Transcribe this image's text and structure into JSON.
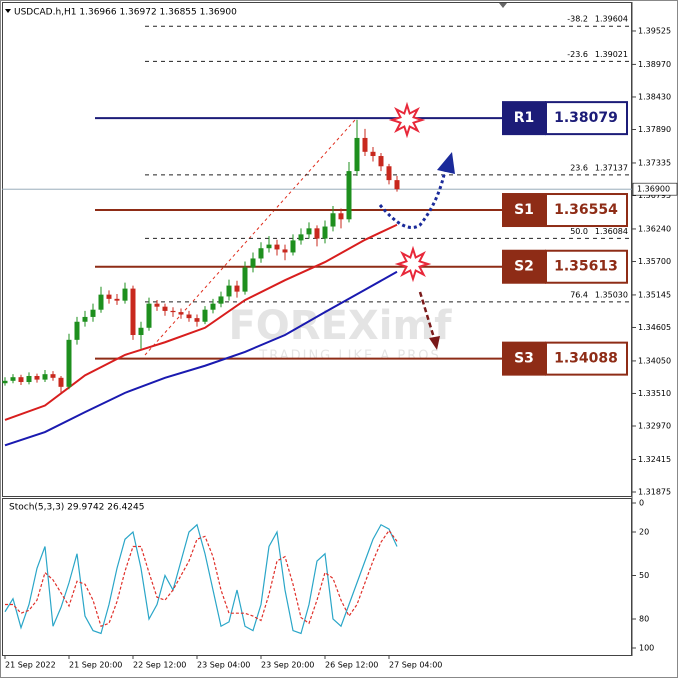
{
  "chart_data": [
    {
      "type": "candlestick",
      "title": "USDCAD.h,H1  1.36966 1.36972 1.36855 1.36900",
      "categories": [
        "21 Sep 2022",
        null,
        null,
        null,
        null,
        null,
        null,
        null,
        "21 Sep 20:00",
        null,
        null,
        null,
        null,
        null,
        null,
        null,
        "22 Sep 12:00",
        null,
        null,
        null,
        null,
        null,
        null,
        null,
        "23 Sep 04:00",
        null,
        null,
        null,
        null,
        null,
        null,
        null,
        "23 Sep 20:00",
        null,
        null,
        null,
        null,
        null,
        null,
        null,
        "26 Sep 12:00",
        null,
        null,
        null,
        null,
        null,
        null,
        null,
        "27 Sep 04:00",
        null
      ],
      "open": [
        1.3368,
        1.3372,
        1.3378,
        1.337,
        1.338,
        1.3374,
        1.3383,
        1.3377,
        1.3362,
        1.344,
        1.347,
        1.3478,
        1.349,
        1.3515,
        1.3508,
        1.3505,
        1.3525,
        1.3448,
        1.346,
        1.35,
        1.3495,
        1.3488,
        1.3486,
        1.3482,
        1.3476,
        1.347,
        1.349,
        1.35,
        1.3512,
        1.353,
        1.352,
        1.356,
        1.3575,
        1.3592,
        1.3598,
        1.359,
        1.3585,
        1.3605,
        1.3615,
        1.3625,
        1.3608,
        1.3628,
        1.365,
        1.364,
        1.372,
        1.3775,
        1.3752,
        1.3745,
        1.3728,
        1.3705
      ],
      "high": [
        1.3378,
        1.3383,
        1.3382,
        1.3386,
        1.3384,
        1.339,
        1.3388,
        1.338,
        1.345,
        1.3478,
        1.3488,
        1.35,
        1.3528,
        1.3522,
        1.3516,
        1.3535,
        1.353,
        1.347,
        1.351,
        1.3506,
        1.35,
        1.3494,
        1.3492,
        1.3488,
        1.3482,
        1.3496,
        1.3508,
        1.352,
        1.354,
        1.3538,
        1.357,
        1.3585,
        1.3602,
        1.3612,
        1.3606,
        1.3598,
        1.3615,
        1.3625,
        1.3635,
        1.363,
        1.3638,
        1.3662,
        1.3658,
        1.3735,
        1.3805,
        1.379,
        1.376,
        1.375,
        1.3732,
        1.3712
      ],
      "low": [
        1.3364,
        1.3368,
        1.3365,
        1.3366,
        1.3369,
        1.337,
        1.3372,
        1.3352,
        1.3358,
        1.3432,
        1.3462,
        1.347,
        1.3485,
        1.35,
        1.3498,
        1.35,
        1.344,
        1.3425,
        1.3455,
        1.3488,
        1.348,
        1.3478,
        1.3475,
        1.347,
        1.3462,
        1.3466,
        1.3484,
        1.3494,
        1.3505,
        1.351,
        1.3515,
        1.3552,
        1.3568,
        1.3585,
        1.358,
        1.3572,
        1.358,
        1.3598,
        1.3608,
        1.3595,
        1.36,
        1.362,
        1.3625,
        1.3635,
        1.3712,
        1.3745,
        1.3736,
        1.372,
        1.3698,
        1.3686
      ],
      "close": [
        1.3372,
        1.3378,
        1.337,
        1.338,
        1.3374,
        1.3383,
        1.3377,
        1.3362,
        1.344,
        1.347,
        1.3478,
        1.349,
        1.3515,
        1.3508,
        1.3505,
        1.3525,
        1.3448,
        1.346,
        1.35,
        1.3495,
        1.3488,
        1.3486,
        1.3482,
        1.3476,
        1.347,
        1.349,
        1.35,
        1.3512,
        1.353,
        1.352,
        1.356,
        1.3575,
        1.3592,
        1.3598,
        1.359,
        1.3585,
        1.3605,
        1.3615,
        1.3625,
        1.3608,
        1.3628,
        1.365,
        1.364,
        1.372,
        1.3775,
        1.3752,
        1.3745,
        1.3728,
        1.3705,
        1.369
      ],
      "up_color": "#1e8f1e",
      "down_color": "#c8281e",
      "lines": [
        {
          "color": "#d81e1e",
          "x": [
            0,
            5,
            10,
            15,
            20,
            25,
            30,
            35,
            40,
            45,
            49
          ],
          "values": [
            1.3307,
            1.3331,
            1.3381,
            1.3415,
            1.3436,
            1.346,
            1.3506,
            1.3539,
            1.3569,
            1.3606,
            1.3631
          ]
        },
        {
          "color": "#1a1ab0",
          "x": [
            0,
            5,
            10,
            15,
            20,
            25,
            30,
            35,
            40,
            45,
            49
          ],
          "values": [
            1.3265,
            1.3287,
            1.332,
            1.3352,
            1.3377,
            1.3397,
            1.342,
            1.3448,
            1.3486,
            1.3523,
            1.3553
          ]
        }
      ],
      "ylim": [
        1.39956,
        1.31792
      ],
      "yticks": [
        1.39525,
        {
          "value": 1.3897,
          "label": "1.38970"
        },
        {
          "value": 1.3843,
          "label": "1.38430"
        },
        {
          "value": 1.3789,
          "label": "1.37890"
        },
        1.37335,
        1.36795,
        {
          "value": 1.3624,
          "label": "1.36240"
        },
        {
          "value": 1.357,
          "label": "1.35700"
        },
        1.35145,
        1.34605,
        {
          "value": 1.3405,
          "label": "1.34050"
        },
        {
          "value": 1.3351,
          "label": "1.33510"
        },
        {
          "value": 1.3297,
          "label": "1.32970"
        },
        1.32415,
        1.31875
      ],
      "current_price": {
        "value": 1.369,
        "label": "1.36900"
      },
      "fib_levels": [
        {
          "level": "-38.2",
          "value": 1.39604
        },
        {
          "level": "-23.6",
          "value": 1.39021
        },
        {
          "level": "23.6",
          "value": 1.37137
        },
        {
          "level": "50.0",
          "value": 1.36084
        },
        {
          "level": "76.4",
          "value": {
            "value": 1.3503,
            "label": "1.35030"
          }
        }
      ],
      "levels": [
        {
          "name": "R1",
          "value": 1.38079,
          "color": "#1c1c78"
        },
        {
          "name": "S1",
          "value": 1.36554,
          "color": "#8e2c16"
        },
        {
          "name": "S2",
          "value": 1.35613,
          "color": "#8e2c16"
        },
        {
          "name": "S3",
          "value": 1.34088,
          "color": "#8e2c16"
        }
      ]
    },
    {
      "type": "line",
      "title": "Stoch(5,3,3) 29.9742 26.4245",
      "lines": [
        {
          "color": "#2aa6c8",
          "values": [
            75,
            66,
            86,
            70,
            45,
            30,
            85,
            72,
            55,
            35,
            78,
            88,
            90,
            70,
            45,
            25,
            20,
            45,
            80,
            70,
            50,
            60,
            40,
            20,
            15,
            35,
            60,
            85,
            82,
            60,
            85,
            88,
            70,
            30,
            20,
            60,
            88,
            90,
            70,
            40,
            35,
            80,
            85,
            70,
            55,
            40,
            25,
            15,
            18,
            29.9742
          ]
        },
        {
          "color": "#e0302a",
          "dashed": true,
          "values": [
            70,
            70,
            76,
            74,
            67,
            48,
            53,
            62,
            71,
            54,
            56,
            67,
            85,
            83,
            68,
            47,
            30,
            30,
            48,
            65,
            67,
            60,
            50,
            40,
            25,
            23,
            37,
            60,
            76,
            76,
            76,
            78,
            81,
            63,
            40,
            37,
            56,
            79,
            83,
            67,
            48,
            52,
            67,
            78,
            70,
            55,
            40,
            27,
            19,
            26.4245
          ]
        }
      ],
      "ylim": [
        0,
        100
      ],
      "yticks": [
        100,
        80,
        50,
        20,
        0
      ]
    }
  ],
  "watermark": {
    "brand": "FOREXimf",
    "tagline": "TRADING LIKE A PROS"
  }
}
